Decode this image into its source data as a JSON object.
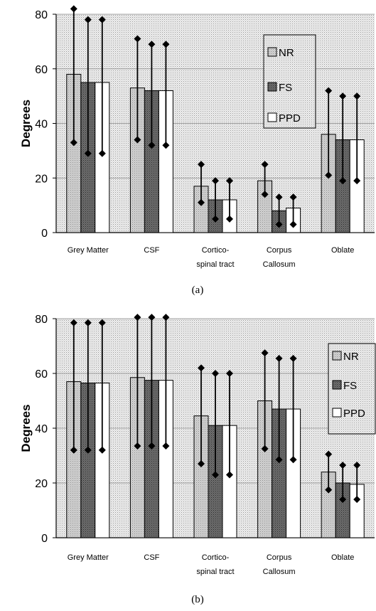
{
  "chart_data": [
    {
      "type": "bar",
      "caption": "(a)",
      "ylabel": "Degrees",
      "ylim": [
        0,
        80
      ],
      "yticks": [
        0,
        20,
        40,
        60,
        80
      ],
      "grid": "horizontal",
      "legend_placement": "top-right",
      "categories": [
        [
          "Grey Matter"
        ],
        [
          "CSF"
        ],
        [
          "Cortico-",
          "spinal tract"
        ],
        [
          "Corpus",
          "Callosum"
        ],
        [
          "Oblate"
        ]
      ],
      "series": [
        {
          "name": "NR",
          "fill": "light",
          "values": [
            58,
            53,
            17,
            19,
            36
          ],
          "err_high": [
            82,
            71,
            25,
            25,
            52
          ],
          "err_low": [
            33,
            34,
            11,
            14,
            21
          ]
        },
        {
          "name": "FS",
          "fill": "dark",
          "values": [
            55,
            52,
            12,
            8,
            34
          ],
          "err_high": [
            78,
            69,
            19,
            13,
            50
          ],
          "err_low": [
            29,
            32,
            5,
            3,
            19
          ]
        },
        {
          "name": "PPD",
          "fill": "white",
          "values": [
            55,
            52,
            12,
            9,
            34
          ],
          "err_high": [
            78,
            69,
            19,
            13,
            50
          ],
          "err_low": [
            29,
            32,
            5,
            3,
            19
          ]
        }
      ]
    },
    {
      "type": "bar",
      "caption": "(b)",
      "ylabel": "Degrees",
      "ylim": [
        0,
        80
      ],
      "yticks": [
        0,
        20,
        40,
        60,
        80
      ],
      "grid": "horizontal",
      "legend_placement": "right",
      "categories": [
        [
          "Grey Matter"
        ],
        [
          "CSF"
        ],
        [
          "Cortico-",
          "spinal tract"
        ],
        [
          "Corpus",
          "Callosum"
        ],
        [
          "Oblate"
        ]
      ],
      "series": [
        {
          "name": "NR",
          "fill": "light",
          "values": [
            57,
            58.5,
            44.5,
            50,
            24
          ],
          "err_high": [
            78.5,
            80.5,
            62,
            67.5,
            30.5
          ],
          "err_low": [
            32,
            33.5,
            27,
            32.5,
            17.5
          ]
        },
        {
          "name": "FS",
          "fill": "dark",
          "values": [
            56.5,
            57.5,
            41,
            47,
            20
          ],
          "err_high": [
            78.5,
            80.5,
            60,
            65.5,
            26.5
          ],
          "err_low": [
            32,
            33.5,
            23,
            28.5,
            14
          ]
        },
        {
          "name": "PPD",
          "fill": "white",
          "values": [
            56.5,
            57.5,
            41,
            47,
            19.5
          ],
          "err_high": [
            78.5,
            80.5,
            60,
            65.5,
            26.5
          ],
          "err_low": [
            32,
            33.5,
            23,
            28.5,
            14
          ]
        }
      ]
    }
  ]
}
